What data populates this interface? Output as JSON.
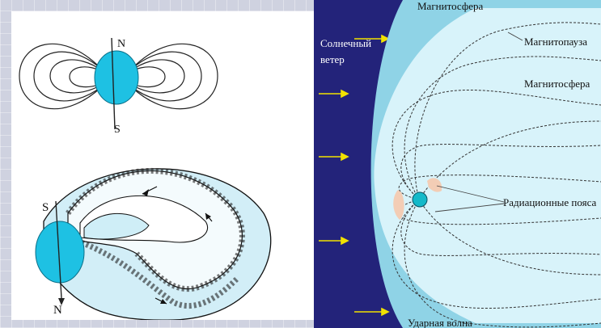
{
  "left_top": {
    "pole_north": "N",
    "pole_south": "S"
  },
  "left_bottom": {
    "pole_south": "S",
    "pole_north": "N"
  },
  "right": {
    "top_label": "Магнитосфера",
    "solar_wind_line1": "Солнечный",
    "solar_wind_line2": "ветер",
    "magnetopause": "Магнитопауза",
    "magnetosphere": "Магнитосфера",
    "radiation_belts": "Радиационные пояса",
    "bottom_label": "Ударная волна"
  },
  "colors": {
    "planet": "#1ec1e3",
    "space": "#23237a",
    "magnetosheath": "#8fd3e6",
    "magnetosphere_fill": "#d8f3fa",
    "arrow": "#f2e200",
    "belt": "#f3cdb5"
  }
}
